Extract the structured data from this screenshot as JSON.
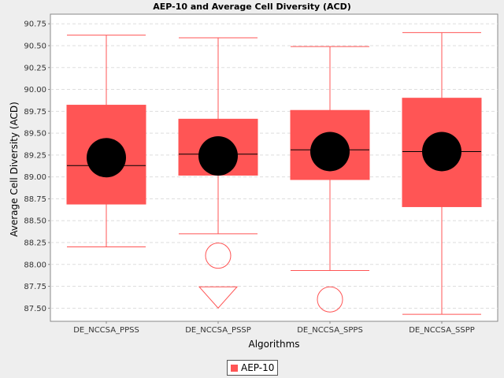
{
  "chart_data": {
    "type": "boxplot",
    "title": "AEP-10 and Average Cell Diversity (ACD)",
    "xlabel": "Algorithms",
    "ylabel": "Average Cell Diversity (ACD)",
    "ylim": [
      87.35,
      90.86
    ],
    "yticks": [
      "87.50",
      "87.75",
      "88.00",
      "88.25",
      "88.50",
      "88.75",
      "89.00",
      "89.25",
      "89.50",
      "89.75",
      "90.00",
      "90.25",
      "90.50",
      "90.75"
    ],
    "grid": true,
    "legend_position": "bottom",
    "series": [
      {
        "name": "AEP-10",
        "color": "#ff5555"
      }
    ],
    "categories": [
      "DE_NCCSA_PPSS",
      "DE_NCCSA_PSSP",
      "DE_NCCSA_SPPS",
      "DE_NCCSA_SSPP"
    ],
    "boxes": [
      {
        "whisker_low": 88.2,
        "q1": 88.69,
        "median": 89.13,
        "q3": 89.82,
        "whisker_high": 90.62,
        "mean": 89.22,
        "outliers": [],
        "far_outliers": []
      },
      {
        "whisker_low": 88.35,
        "q1": 89.02,
        "median": 89.26,
        "q3": 89.66,
        "whisker_high": 90.59,
        "mean": 89.24,
        "outliers": [
          88.1
        ],
        "far_outliers": [
          87.6
        ]
      },
      {
        "whisker_low": 87.93,
        "q1": 88.97,
        "median": 89.31,
        "q3": 89.76,
        "whisker_high": 90.49,
        "mean": 89.29,
        "outliers": [
          87.6
        ],
        "far_outliers": []
      },
      {
        "whisker_low": 87.43,
        "q1": 88.66,
        "median": 89.29,
        "q3": 89.9,
        "whisker_high": 90.65,
        "mean": 89.29,
        "outliers": [],
        "far_outliers": []
      }
    ]
  }
}
